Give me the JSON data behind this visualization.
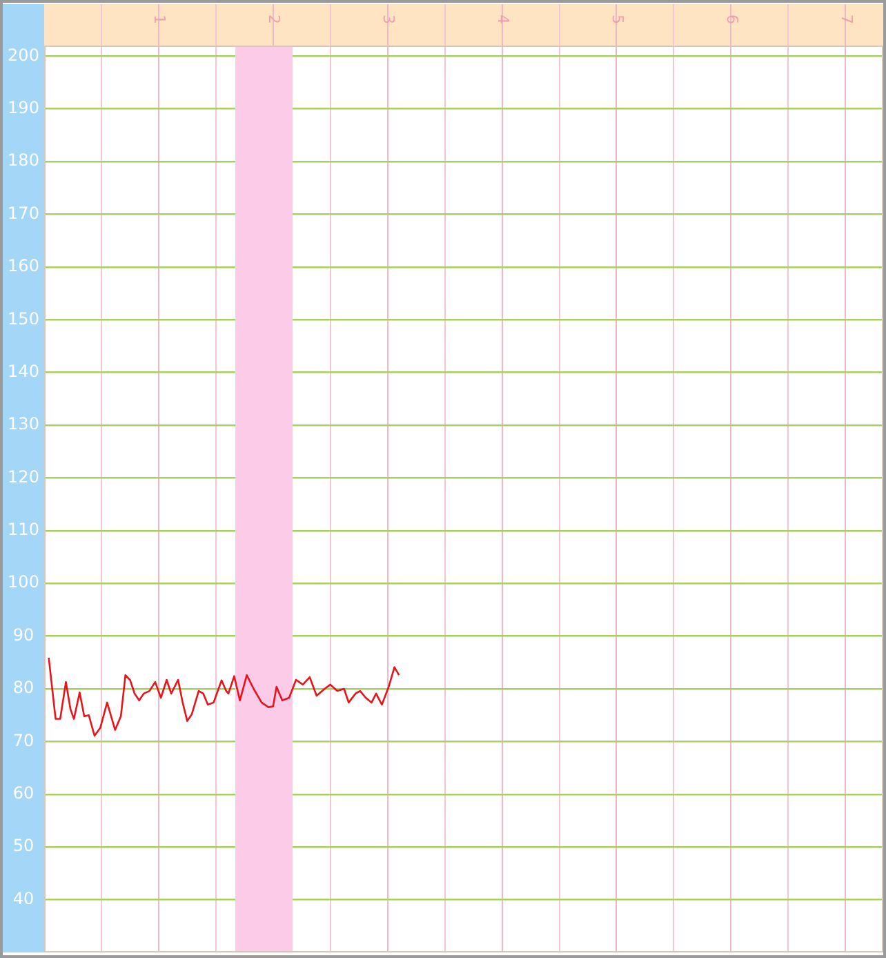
{
  "chart_data": {
    "type": "line",
    "x": [
      0.04,
      0.1,
      0.14,
      0.19,
      0.23,
      0.26,
      0.31,
      0.35,
      0.39,
      0.44,
      0.49,
      0.55,
      0.62,
      0.67,
      0.71,
      0.75,
      0.79,
      0.83,
      0.87,
      0.92,
      0.97,
      1.02,
      1.07,
      1.11,
      1.17,
      1.21,
      1.25,
      1.29,
      1.35,
      1.39,
      1.43,
      1.48,
      1.55,
      1.59,
      1.61,
      1.66,
      1.71,
      1.77,
      1.83,
      1.9,
      1.96,
      2.0,
      2.03,
      2.08,
      2.14,
      2.2,
      2.26,
      2.32,
      2.38,
      2.45,
      2.5,
      2.56,
      2.62,
      2.66,
      2.72,
      2.76,
      2.81,
      2.86,
      2.9,
      2.95,
      3.01,
      3.06,
      3.1
    ],
    "series": [
      {
        "color": "#e8141c",
        "values": [
          85.9,
          74.3,
          74.3,
          81.3,
          76.1,
          74.3,
          79.3,
          74.8,
          75.0,
          71.1,
          72.6,
          77.4,
          72.2,
          74.8,
          82.6,
          81.7,
          79.1,
          77.8,
          79.1,
          79.6,
          81.3,
          78.3,
          81.7,
          79.1,
          81.7,
          77.4,
          73.9,
          75.2,
          79.6,
          79.1,
          77.0,
          77.4,
          81.6,
          79.6,
          79.1,
          82.4,
          77.8,
          82.6,
          80.0,
          77.4,
          76.5,
          76.7,
          80.4,
          77.8,
          78.3,
          81.7,
          80.8,
          82.2,
          78.7,
          80.0,
          80.8,
          79.6,
          80.0,
          77.4,
          79.1,
          79.6,
          78.3,
          77.4,
          79.1,
          77.0,
          80.4,
          84.1,
          82.6
        ]
      }
    ],
    "xlim": [
      0,
      7.33
    ],
    "ylim": [
      30,
      202
    ],
    "xticks": [
      {
        "value": 0.5,
        "label": null
      },
      1,
      {
        "value": 1.5,
        "label": null
      },
      2,
      {
        "value": 2.5,
        "label": null
      },
      3,
      {
        "value": 3.5,
        "label": null
      },
      4,
      {
        "value": 4.5,
        "label": null
      },
      5,
      {
        "value": 5.5,
        "label": null
      },
      6,
      {
        "value": 6.5,
        "label": null
      },
      7
    ],
    "yticks": [
      40,
      50,
      60,
      70,
      80,
      90,
      100,
      110,
      120,
      130,
      140,
      150,
      160,
      170,
      180,
      190,
      200
    ],
    "grid": true,
    "legend": false,
    "marker": "none",
    "line_style": "solid",
    "bands": [
      {
        "axis": "x",
        "from": 1.67,
        "to": 2.17,
        "color": "#fbcbe8"
      }
    ]
  }
}
